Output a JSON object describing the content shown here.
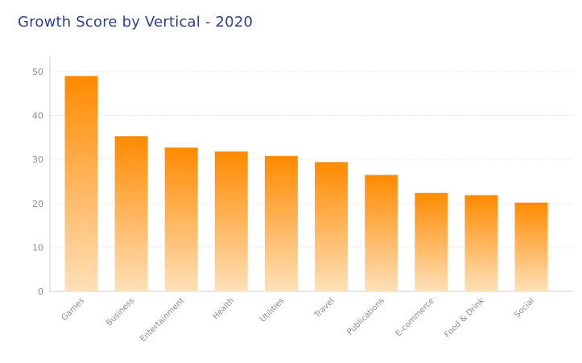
{
  "chart_data": {
    "type": "bar",
    "title": "Growth Score by Vertical - 2020",
    "xlabel": "",
    "ylabel": "",
    "categories": [
      "Games",
      "Business",
      "Entertainment",
      "Health",
      "Utilities",
      "Travel",
      "Publications",
      "E-commerce",
      "Food & Drink",
      "Social"
    ],
    "values": [
      49,
      35.3,
      32.7,
      31.8,
      30.8,
      29.4,
      26.5,
      22.4,
      21.9,
      20.2
    ],
    "ylim": [
      0,
      52
    ],
    "yticks": [
      0,
      10,
      20,
      30,
      40,
      50
    ],
    "grid": true,
    "legend": "none",
    "colors": {
      "bar_top": "#ff8a00",
      "bar_bottom": "#ffe0b8",
      "title": "#2b3f8f",
      "grid": "#e3e3e3",
      "axis": "#d0d0d0",
      "tick_text": "#8a8a9a"
    }
  }
}
